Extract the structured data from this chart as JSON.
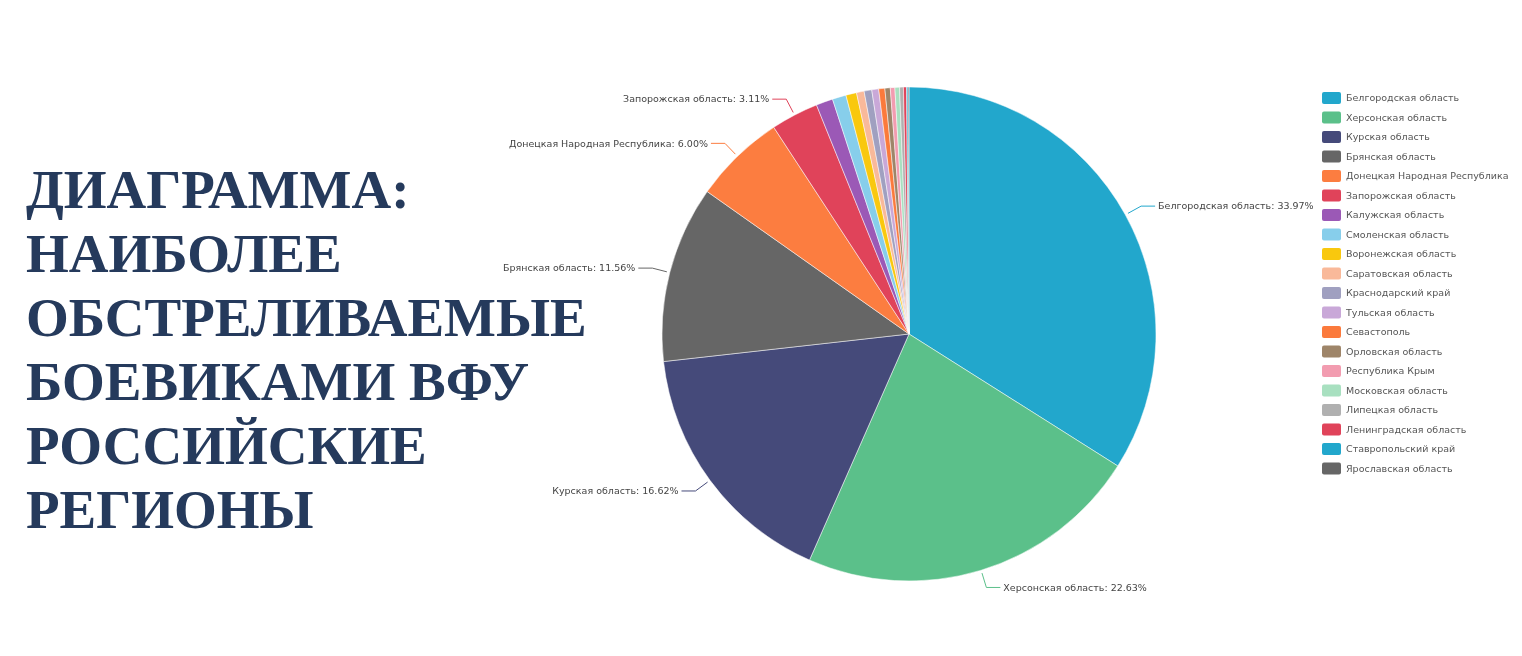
{
  "chart_data": {
    "type": "pie",
    "title": "ДИАГРАММА: НАИБОЛЕЕ ОБСТРЕЛИВАЕМЫЕ БОЕВИКАМИ ВФУ РОССИЙСКИЕ РЕГИОНЫ",
    "categories": [
      "Белгородская область",
      "Херсонская область",
      "Курская область",
      "Брянская область",
      "Донецкая Народная Республика",
      "Запорожская область",
      "Калужская область",
      "Смоленская область",
      "Воронежская область",
      "Саратовская область",
      "Краснодарский край",
      "Тульская область",
      "Севастополь",
      "Орловская область",
      "Республика Крым",
      "Московская область",
      "Липецкая область",
      "Ленинградская область",
      "Ставропольский край",
      "Ярославская область"
    ],
    "values": [
      33.97,
      22.63,
      16.62,
      11.56,
      6.0,
      3.11,
      1.1,
      0.9,
      0.7,
      0.5,
      0.5,
      0.45,
      0.4,
      0.35,
      0.3,
      0.3,
      0.25,
      0.2,
      0.1,
      0.06
    ],
    "value_labels": [
      "Белгородская область: 33.97%",
      "Херсонская область: 22.63%",
      "Курская область: 16.62%",
      "Брянская область: 11.56%",
      "Донецкая Народная Республика: 6.00%",
      "Запорожская область: 3.11%",
      null,
      null,
      null,
      null,
      null,
      null,
      null,
      null,
      null,
      null,
      null,
      null,
      null,
      null
    ],
    "colors": [
      "#22a7cc",
      "#5bc08a",
      "#454a7a",
      "#666666",
      "#fc7d40",
      "#e0435a",
      "#9b59b6",
      "#87ceeb",
      "#f9c80e",
      "#f9b99a",
      "#a0a0c0",
      "#c9a8d8",
      "#fb7a3c",
      "#9e8569",
      "#f29cb0",
      "#a8e0c0",
      "#b0b0b0",
      "#e0435a",
      "#22a7cc",
      "#666666"
    ],
    "legend": "right"
  }
}
